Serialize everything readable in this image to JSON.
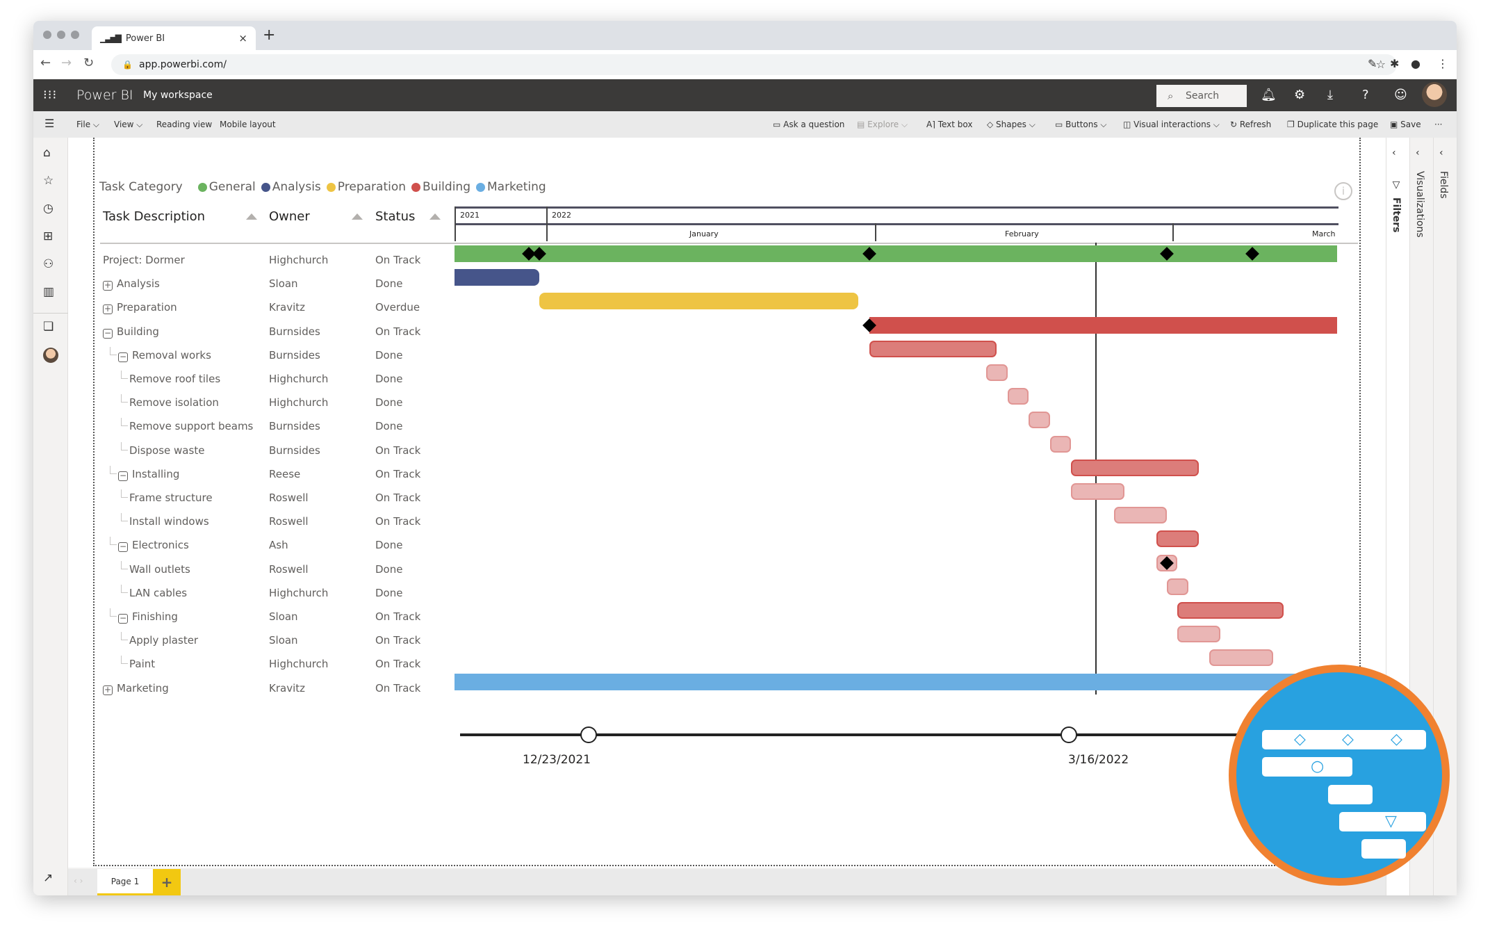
{
  "browser": {
    "tab_title": "Power BI",
    "tab_icon": "bar-chart-icon",
    "url": "app.powerbi.com/",
    "new_tab": "+",
    "close": "×"
  },
  "header": {
    "brand": "Power BI",
    "workspace": "My workspace",
    "search_placeholder": "Search"
  },
  "toolbar": {
    "left": [
      {
        "label": "File ⌵"
      },
      {
        "label": "View ⌵"
      },
      {
        "label": "Reading view"
      },
      {
        "label": "Mobile layout"
      }
    ],
    "right": [
      {
        "label": "Ask a question",
        "icon": "☐"
      },
      {
        "label": "Explore ⌵",
        "icon": "▤",
        "disabled": true
      },
      {
        "label": "Text box",
        "icon": "A⌉"
      },
      {
        "label": "Shapes ⌵",
        "icon": "◇"
      },
      {
        "label": "Buttons ⌵",
        "icon": "▭"
      },
      {
        "label": "Visual interactions ⌵",
        "icon": "◫"
      },
      {
        "label": "Refresh",
        "icon": "↻"
      },
      {
        "label": "Duplicate this page",
        "icon": "❐"
      },
      {
        "label": "Save",
        "icon": "🖫"
      },
      {
        "label": "···"
      }
    ]
  },
  "right_panes": {
    "filters": "Filters",
    "visualizations": "Visualizations",
    "fields": "Fields"
  },
  "pages": {
    "tabs": [
      "Page 1"
    ],
    "add": "+"
  },
  "visual": {
    "legend_title": "Task Category",
    "legend": [
      {
        "label": "General",
        "color": "#6bb35f"
      },
      {
        "label": "Analysis",
        "color": "#46558a"
      },
      {
        "label": "Preparation",
        "color": "#eec443"
      },
      {
        "label": "Building",
        "color": "#d0504c"
      },
      {
        "label": "Marketing",
        "color": "#6aaee2"
      }
    ],
    "columns": {
      "task": "Task Description",
      "owner": "Owner",
      "status": "Status"
    },
    "scale": {
      "years": [
        "2021",
        "2022"
      ],
      "months": [
        "January",
        "February",
        "March"
      ]
    },
    "timeline": {
      "start_label": "12/23/2021",
      "end_label": "3/16/2022"
    }
  },
  "chart_data": {
    "type": "gantt",
    "title": "Project: Dormer",
    "x_axis": {
      "years": [
        "2021",
        "2022"
      ],
      "months": [
        "January",
        "February",
        "March"
      ]
    },
    "today_marker": "~Feb 21, 2022",
    "rows": [
      {
        "task": "Project: Dormer",
        "owner": "Highchurch",
        "status": "On Track",
        "level": 0,
        "toggle": "",
        "category": "General",
        "start": "2021-12-23",
        "end": "2022-03-16",
        "milestones": [
          "2021-12-30",
          "2021-12-31",
          "2022-01-31",
          "2022-02-28",
          "2022-03-08"
        ]
      },
      {
        "task": "Analysis",
        "owner": "Sloan",
        "status": "Done",
        "level": 0,
        "toggle": "+",
        "category": "Analysis",
        "start": "2021-12-23",
        "end": "2021-12-31"
      },
      {
        "task": "Preparation",
        "owner": "Kravitz",
        "status": "Overdue",
        "level": 0,
        "toggle": "+",
        "category": "Preparation",
        "start": "2021-12-31",
        "end": "2022-01-30"
      },
      {
        "task": "Building",
        "owner": "Burnsides",
        "status": "On Track",
        "level": 0,
        "toggle": "-",
        "category": "Building",
        "start": "2022-01-31",
        "end": "2022-03-16",
        "milestones": [
          "2022-01-31"
        ]
      },
      {
        "task": "Removal works",
        "owner": "Burnsides",
        "status": "Done",
        "level": 1,
        "toggle": "-",
        "category": "Building",
        "start": "2022-01-31",
        "end": "2022-02-12"
      },
      {
        "task": "Remove roof tiles",
        "owner": "Highchurch",
        "status": "Done",
        "level": 2,
        "toggle": "",
        "category": "Building",
        "start": "2022-02-11",
        "end": "2022-02-13"
      },
      {
        "task": "Remove isolation",
        "owner": "Highchurch",
        "status": "Done",
        "level": 2,
        "toggle": "",
        "category": "Building",
        "start": "2022-02-13",
        "end": "2022-02-15"
      },
      {
        "task": "Remove support beams",
        "owner": "Burnsides",
        "status": "Done",
        "level": 2,
        "toggle": "",
        "category": "Building",
        "start": "2022-02-15",
        "end": "2022-02-17"
      },
      {
        "task": "Dispose waste",
        "owner": "Burnsides",
        "status": "On Track",
        "level": 2,
        "toggle": "",
        "category": "Building",
        "start": "2022-02-17",
        "end": "2022-02-19"
      },
      {
        "task": "Installing",
        "owner": "Reese",
        "status": "On Track",
        "level": 1,
        "toggle": "-",
        "category": "Building",
        "start": "2022-02-19",
        "end": "2022-03-03"
      },
      {
        "task": "Frame structure",
        "owner": "Roswell",
        "status": "On Track",
        "level": 2,
        "toggle": "",
        "category": "Building",
        "start": "2022-02-19",
        "end": "2022-02-24"
      },
      {
        "task": "Install windows",
        "owner": "Roswell",
        "status": "On Track",
        "level": 2,
        "toggle": "",
        "category": "Building",
        "start": "2022-02-23",
        "end": "2022-02-28"
      },
      {
        "task": "Electronics",
        "owner": "Ash",
        "status": "Done",
        "level": 1,
        "toggle": "-",
        "category": "Building",
        "start": "2022-02-27",
        "end": "2022-03-03"
      },
      {
        "task": "Wall outlets",
        "owner": "Roswell",
        "status": "Done",
        "level": 2,
        "toggle": "",
        "category": "Building",
        "start": "2022-02-27",
        "end": "2022-02-29",
        "milestones": [
          "2022-02-28"
        ]
      },
      {
        "task": "LAN cables",
        "owner": "Highchurch",
        "status": "Done",
        "level": 2,
        "toggle": "",
        "category": "Building",
        "start": "2022-02-28",
        "end": "2022-03-02"
      },
      {
        "task": "Finishing",
        "owner": "Sloan",
        "status": "On Track",
        "level": 1,
        "toggle": "-",
        "category": "Building",
        "start": "2022-03-01",
        "end": "2022-03-11"
      },
      {
        "task": "Apply plaster",
        "owner": "Sloan",
        "status": "On Track",
        "level": 2,
        "toggle": "",
        "category": "Building",
        "start": "2022-03-01",
        "end": "2022-03-05"
      },
      {
        "task": "Paint",
        "owner": "Highchurch",
        "status": "On Track",
        "level": 2,
        "toggle": "",
        "category": "Building",
        "start": "2022-03-04",
        "end": "2022-03-10"
      },
      {
        "task": "Marketing",
        "owner": "Kravitz",
        "status": "On Track",
        "level": 0,
        "toggle": "+",
        "category": "Marketing",
        "start": "2021-12-23",
        "end": "2022-03-16"
      }
    ]
  }
}
